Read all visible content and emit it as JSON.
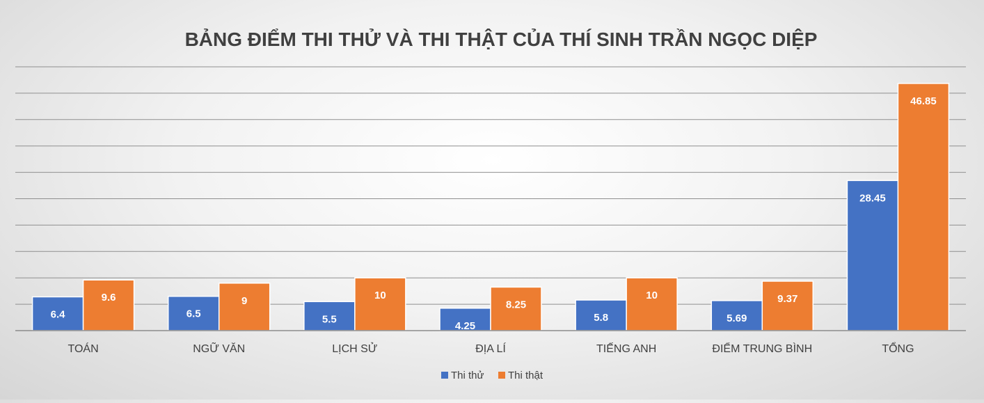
{
  "chart_data": {
    "type": "bar",
    "title": "BẢNG ĐIỂM THI THỬ VÀ THI THẬT CỦA THÍ SINH TRẦN NGỌC DIỆP",
    "xlabel": "",
    "ylabel": "",
    "categories": [
      "TOÁN",
      "NGỮ VĂN",
      "LỊCH SỬ",
      "ĐỊA LÍ",
      "TIẾNG ANH",
      "ĐIỂM TRUNG BÌNH",
      "TỔNG"
    ],
    "series": [
      {
        "name": "Thi thử",
        "color": "#4472C4",
        "values": [
          6.4,
          6.5,
          5.5,
          4.25,
          5.8,
          5.69,
          28.45
        ]
      },
      {
        "name": "Thi thật",
        "color": "#ED7D31",
        "values": [
          9.6,
          9,
          10,
          8.25,
          10,
          9.37,
          46.85
        ]
      }
    ],
    "ylim": [
      0,
      50
    ],
    "grid": true,
    "legend_position": "bottom"
  }
}
